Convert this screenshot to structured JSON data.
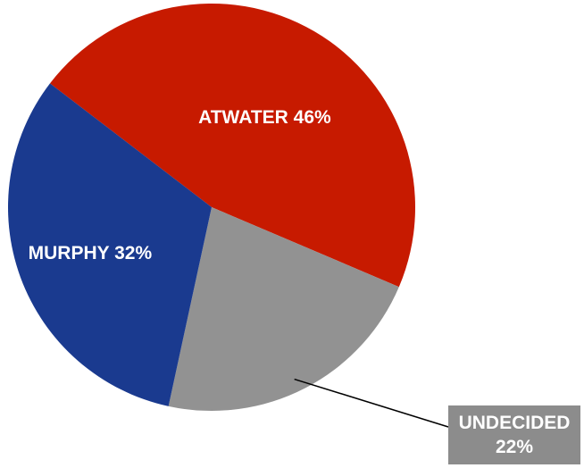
{
  "chart_data": {
    "type": "pie",
    "title": "",
    "slices": [
      {
        "name": "ATWATER",
        "value": 46,
        "label": "ATWATER 46%",
        "color": "#c71a00"
      },
      {
        "name": "UNDECIDED",
        "value": 22,
        "label_line1": "UNDECIDED",
        "label_line2": "22%",
        "color": "#929292"
      },
      {
        "name": "MURPHY",
        "value": 32,
        "label": "MURPHY 32%",
        "color": "#1a3a8f"
      }
    ],
    "legend": "none"
  }
}
